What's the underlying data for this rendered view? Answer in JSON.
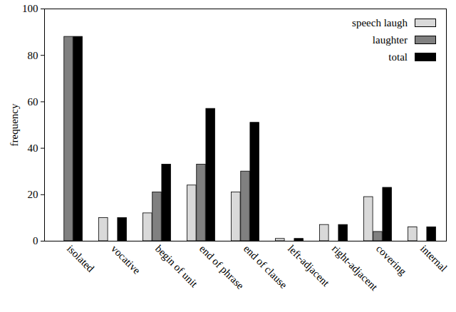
{
  "chart_data": {
    "type": "bar",
    "categories": [
      "isolated",
      "vocative",
      "begin of unit",
      "end of phrase",
      "end of clause",
      "left-adjacent",
      "right-adjacent",
      "covering",
      "internal"
    ],
    "series": [
      {
        "name": "speech laugh",
        "color": "#d9d9d9",
        "values": [
          0,
          10,
          12,
          24,
          21,
          1,
          7,
          19,
          6
        ]
      },
      {
        "name": "laughter",
        "color": "#808080",
        "values": [
          88,
          0,
          21,
          33,
          30,
          0,
          0,
          4,
          0
        ]
      },
      {
        "name": "total",
        "color": "#000000",
        "values": [
          88,
          10,
          33,
          57,
          51,
          1,
          7,
          23,
          6
        ]
      }
    ],
    "y_label": "frequency",
    "ylim": [
      0,
      100
    ],
    "yticks": [
      0,
      20,
      40,
      60,
      80,
      100
    ],
    "legend": "top-right",
    "grid": false
  }
}
